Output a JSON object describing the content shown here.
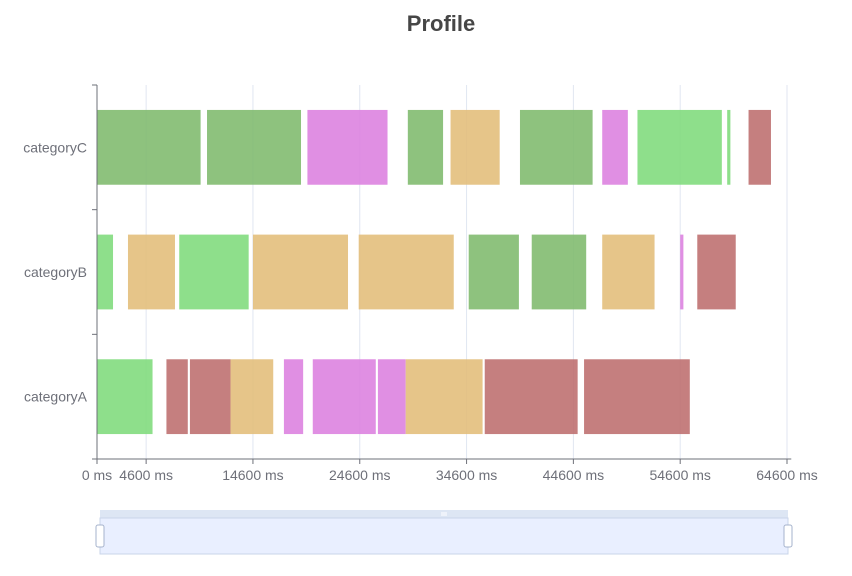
{
  "chart_data": {
    "type": "profile",
    "title": "Profile",
    "categories": [
      "categoryA",
      "categoryB",
      "categoryC"
    ],
    "x_unit": "ms",
    "xlim": [
      0,
      65000
    ],
    "x_ticks": [
      0,
      4600,
      14600,
      24600,
      34600,
      44600,
      54600,
      64600
    ],
    "x_tick_labels": [
      "0 ms",
      "4600 ms",
      "14600 ms",
      "24600 ms",
      "34600 ms",
      "44600 ms",
      "54600 ms",
      "64600 ms"
    ],
    "grid": true,
    "colors": {
      "green-dark": "#7eb96c",
      "green-light": "#7edb7b",
      "pink": "#dc7fdf",
      "tan": "#e2bd79",
      "red": "#bd6d6d"
    },
    "tasks": [
      {
        "category": "categoryA",
        "start": 0,
        "end": 5200,
        "color": "green-light"
      },
      {
        "category": "categoryA",
        "start": 6500,
        "end": 8500,
        "color": "red"
      },
      {
        "category": "categoryA",
        "start": 8700,
        "end": 12500,
        "color": "red"
      },
      {
        "category": "categoryA",
        "start": 12500,
        "end": 16500,
        "color": "tan"
      },
      {
        "category": "categoryA",
        "start": 17500,
        "end": 19300,
        "color": "pink"
      },
      {
        "category": "categoryA",
        "start": 20200,
        "end": 26100,
        "color": "pink"
      },
      {
        "category": "categoryA",
        "start": 26300,
        "end": 28900,
        "color": "pink"
      },
      {
        "category": "categoryA",
        "start": 28900,
        "end": 36100,
        "color": "tan"
      },
      {
        "category": "categoryA",
        "start": 36300,
        "end": 45000,
        "color": "red"
      },
      {
        "category": "categoryA",
        "start": 45600,
        "end": 55500,
        "color": "red"
      },
      {
        "category": "categoryB",
        "start": 0,
        "end": 1500,
        "color": "green-light"
      },
      {
        "category": "categoryB",
        "start": 2900,
        "end": 7300,
        "color": "tan"
      },
      {
        "category": "categoryB",
        "start": 7700,
        "end": 14200,
        "color": "green-light"
      },
      {
        "category": "categoryB",
        "start": 14600,
        "end": 23500,
        "color": "tan"
      },
      {
        "category": "categoryB",
        "start": 24500,
        "end": 33400,
        "color": "tan"
      },
      {
        "category": "categoryB",
        "start": 34800,
        "end": 39500,
        "color": "green-dark"
      },
      {
        "category": "categoryB",
        "start": 40700,
        "end": 45800,
        "color": "green-dark"
      },
      {
        "category": "categoryB",
        "start": 47300,
        "end": 52200,
        "color": "tan"
      },
      {
        "category": "categoryB",
        "start": 54600,
        "end": 54900,
        "color": "pink"
      },
      {
        "category": "categoryB",
        "start": 56200,
        "end": 59800,
        "color": "red"
      },
      {
        "category": "categoryC",
        "start": 0,
        "end": 9700,
        "color": "green-dark"
      },
      {
        "category": "categoryC",
        "start": 10300,
        "end": 19100,
        "color": "green-dark"
      },
      {
        "category": "categoryC",
        "start": 19700,
        "end": 27200,
        "color": "pink"
      },
      {
        "category": "categoryC",
        "start": 29100,
        "end": 32400,
        "color": "green-dark"
      },
      {
        "category": "categoryC",
        "start": 33100,
        "end": 37700,
        "color": "tan"
      },
      {
        "category": "categoryC",
        "start": 39600,
        "end": 46400,
        "color": "green-dark"
      },
      {
        "category": "categoryC",
        "start": 47300,
        "end": 49700,
        "color": "pink"
      },
      {
        "category": "categoryC",
        "start": 50600,
        "end": 58500,
        "color": "green-light"
      },
      {
        "category": "categoryC",
        "start": 59000,
        "end": 59300,
        "color": "green-light"
      },
      {
        "category": "categoryC",
        "start": 61000,
        "end": 63100,
        "color": "red"
      }
    ],
    "datazoom": {
      "start_percent": 0,
      "end_percent": 100
    }
  }
}
